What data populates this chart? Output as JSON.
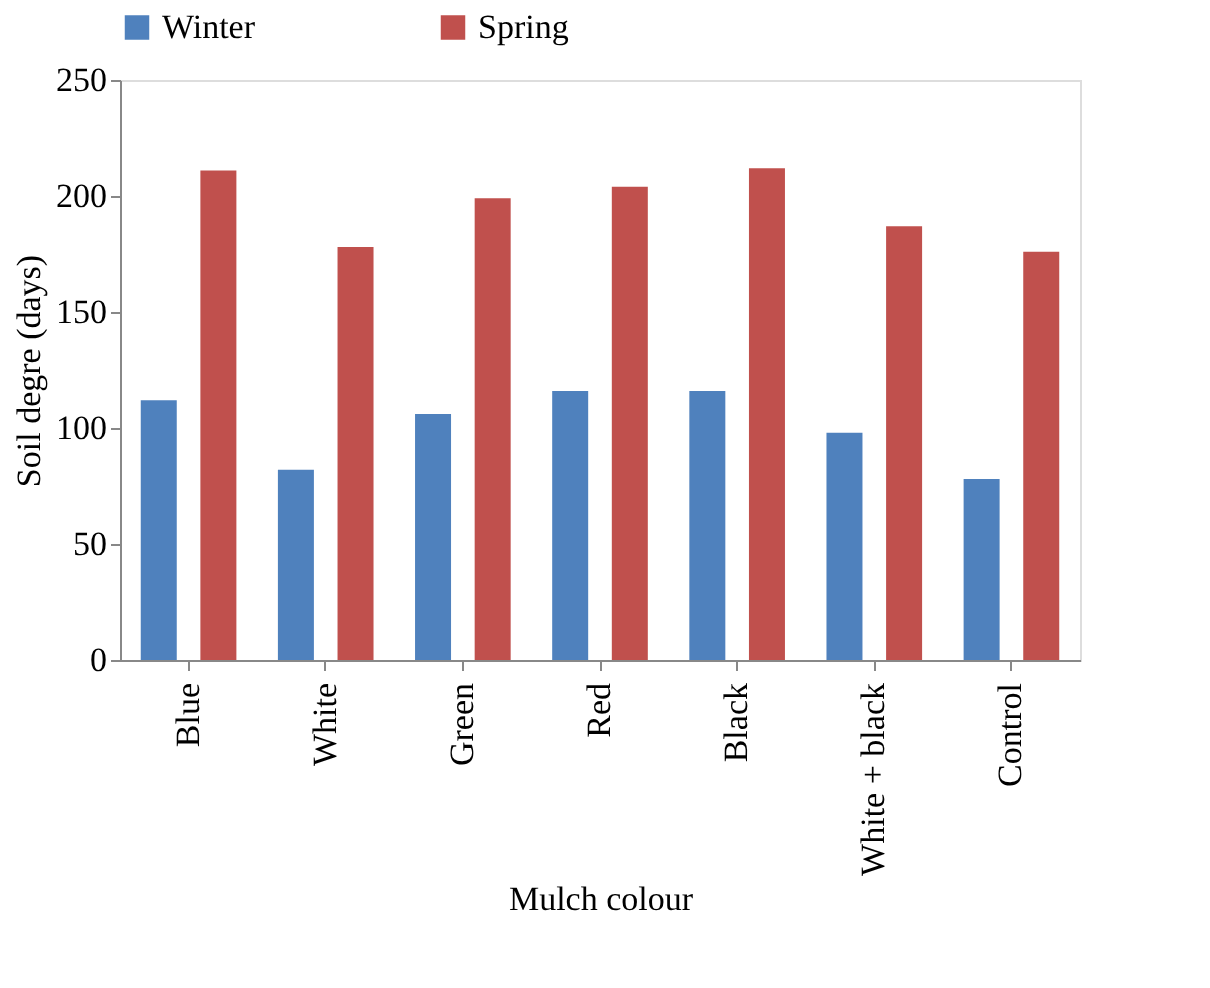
{
  "chart_data": {
    "type": "bar",
    "xlabel": "Mulch colour",
    "ylabel": "Soil degre (days)",
    "categories": [
      "Blue",
      "White",
      "Green",
      "Red",
      "Black",
      "White + black",
      "Control"
    ],
    "series": [
      {
        "name": "Winter",
        "color": "#4f81bd",
        "values": [
          112,
          82,
          106,
          116,
          116,
          98,
          78
        ]
      },
      {
        "name": "Spring",
        "color": "#c0504d",
        "values": [
          211,
          178,
          199,
          204,
          212,
          187,
          176
        ]
      }
    ],
    "ylim": [
      0,
      250
    ],
    "yticks": [
      0,
      50,
      100,
      150,
      200,
      250
    ],
    "grid": false,
    "legend": "top"
  }
}
